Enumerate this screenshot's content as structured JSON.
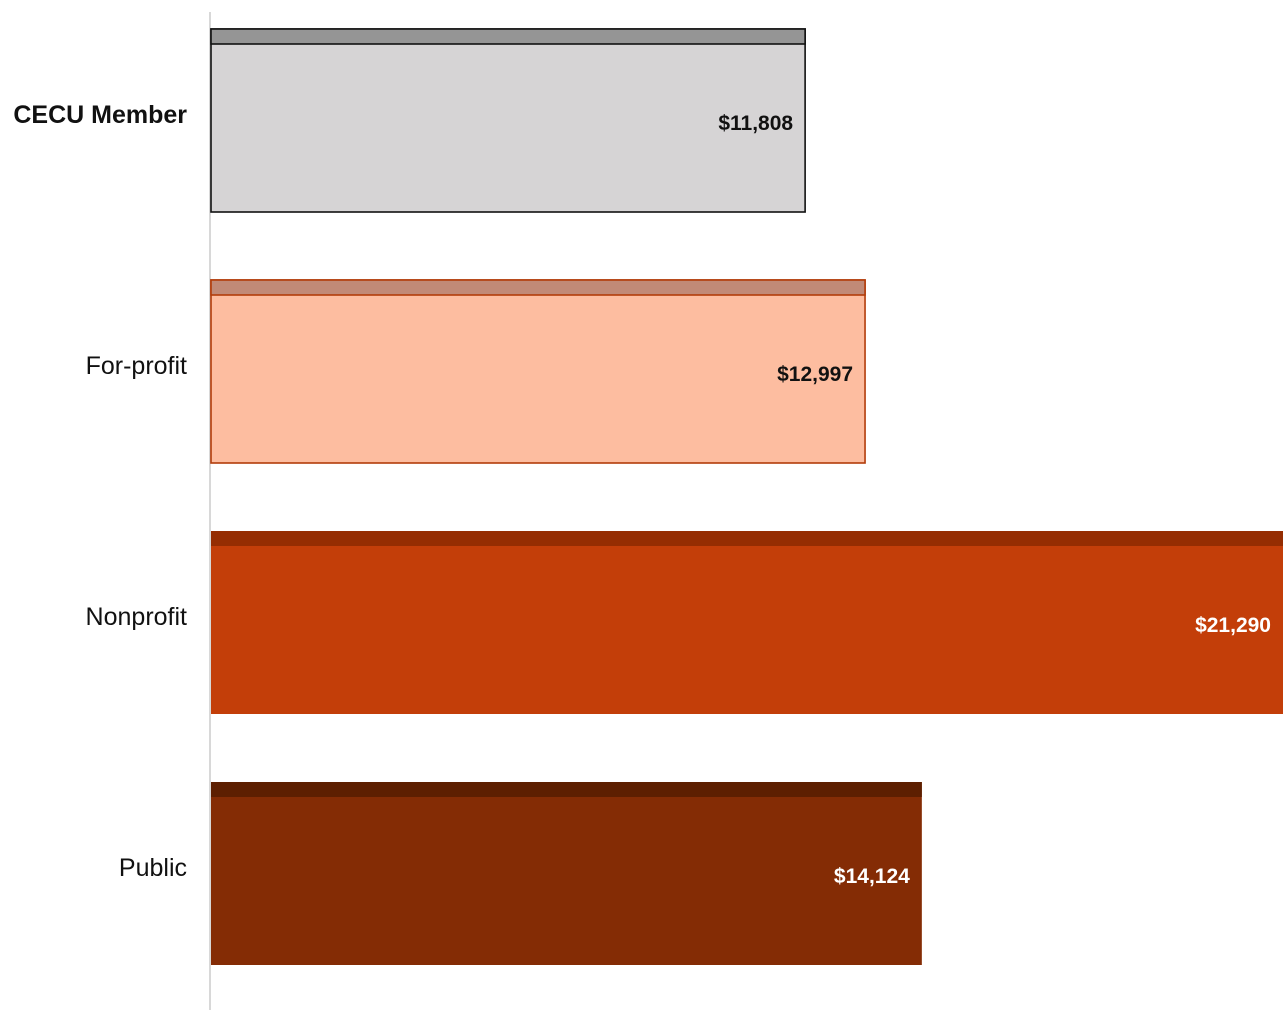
{
  "chart_data": {
    "type": "bar",
    "orientation": "horizontal",
    "title": "",
    "xlabel": "",
    "ylabel": "",
    "xlim": [
      0,
      21290
    ],
    "grid": false,
    "legend": "none",
    "categories": [
      "CECU Member",
      "For-profit",
      "Nonprofit",
      "Public"
    ],
    "values": [
      11808,
      12997,
      21290,
      14124
    ],
    "value_labels": [
      "$11,808",
      "$12,997",
      "$21,290",
      "$14,124"
    ],
    "highlight_category": "CECU Member",
    "colors": {
      "fill": [
        "#d6d4d5",
        "#fdbda0",
        "#c33e09",
        "#842c05"
      ],
      "top_band": [
        "#959595",
        "#c18a77",
        "#952d02",
        "#5d1f01"
      ],
      "stroke": [
        "#111111",
        "#b23c0a",
        "#c33e09",
        "#842c05"
      ],
      "label": [
        "#111111",
        "#111111",
        "#ffffff",
        "#ffffff"
      ],
      "axis": "#cccccc"
    }
  }
}
